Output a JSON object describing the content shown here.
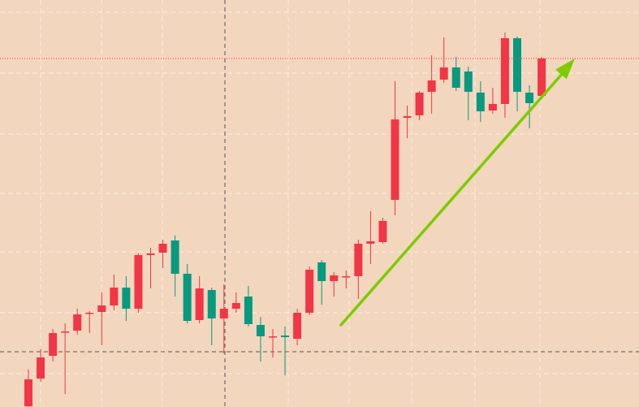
{
  "chart_data": {
    "type": "candlestick",
    "ylim": [
      0,
      501
    ],
    "up_color": "#f23645",
    "down_color": "#089981",
    "open": [
      1,
      35,
      63,
      93,
      94,
      116,
      117,
      125,
      147,
      121,
      187,
      190,
      205,
      164,
      107,
      144,
      109,
      121,
      136,
      101,
      87,
      88,
      84,
      116,
      178,
      155,
      161,
      161,
      201,
      203,
      255,
      356,
      359,
      388,
      403,
      418,
      413,
      387,
      365,
      373,
      454,
      387,
      383
    ],
    "high": [
      46,
      71,
      96,
      103,
      121,
      118,
      141,
      163,
      161,
      189,
      196,
      206,
      211,
      176,
      161,
      147,
      151,
      141,
      149,
      111,
      96,
      99,
      121,
      173,
      181,
      166,
      168,
      206,
      241,
      233,
      401,
      371,
      389,
      433,
      455,
      431,
      419,
      401,
      393,
      461,
      456,
      396,
      431
    ],
    "low": [
      0,
      31,
      56,
      16,
      89,
      91,
      76,
      119,
      106,
      116,
      146,
      171,
      136,
      103,
      103,
      76,
      66,
      116,
      99,
      56,
      61,
      39,
      76,
      113,
      126,
      136,
      146,
      133,
      176,
      201,
      236,
      331,
      353,
      361,
      399,
      389,
      353,
      351,
      361,
      356,
      364,
      343,
      379
    ],
    "close": [
      34,
      61,
      91,
      93,
      114,
      116,
      125,
      147,
      121,
      187,
      189,
      201,
      164,
      106,
      146,
      109,
      121,
      128,
      102,
      87,
      87,
      86,
      116,
      169,
      155,
      162,
      161,
      201,
      204,
      229,
      354,
      358,
      387,
      402,
      418,
      393,
      388,
      364,
      373,
      454,
      388,
      374,
      429
    ],
    "arrow_color": "#7ccc00"
  }
}
